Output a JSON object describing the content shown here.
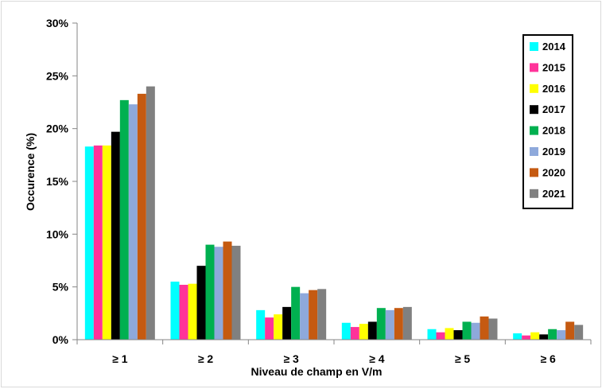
{
  "chart_data": {
    "type": "bar",
    "title": "",
    "xlabel": "Niveau de champ en V/m",
    "ylabel": "Occurence (%)",
    "ylim": [
      0,
      30
    ],
    "yticks": [
      0,
      5,
      10,
      15,
      20,
      25,
      30
    ],
    "ytick_labels": [
      "0%",
      "5%",
      "10%",
      "15%",
      "20%",
      "25%",
      "30%"
    ],
    "categories": [
      "≥ 1",
      "≥ 2",
      "≥ 3",
      "≥ 4",
      "≥ 5",
      "≥ 6"
    ],
    "grid": false,
    "legend_position": "top-right",
    "series": [
      {
        "name": "2014",
        "color": "#00FFFF",
        "values": [
          18.3,
          5.5,
          2.8,
          1.6,
          1.0,
          0.6
        ]
      },
      {
        "name": "2015",
        "color": "#FF3399",
        "values": [
          18.4,
          5.2,
          2.1,
          1.2,
          0.7,
          0.4
        ]
      },
      {
        "name": "2016",
        "color": "#FFFF00",
        "values": [
          18.4,
          5.3,
          2.4,
          1.5,
          1.1,
          0.7
        ]
      },
      {
        "name": "2017",
        "color": "#000000",
        "values": [
          19.7,
          7.0,
          3.1,
          1.7,
          0.9,
          0.5
        ]
      },
      {
        "name": "2018",
        "color": "#00B050",
        "values": [
          22.7,
          9.0,
          5.0,
          3.0,
          1.7,
          1.0
        ]
      },
      {
        "name": "2019",
        "color": "#8EA9DB",
        "values": [
          22.3,
          8.8,
          4.4,
          2.8,
          1.6,
          0.9
        ]
      },
      {
        "name": "2020",
        "color": "#C55A11",
        "values": [
          23.3,
          9.3,
          4.7,
          3.0,
          2.2,
          1.7
        ]
      },
      {
        "name": "2021",
        "color": "#808080",
        "values": [
          24.0,
          8.9,
          4.8,
          3.1,
          2.0,
          1.4
        ]
      }
    ]
  }
}
